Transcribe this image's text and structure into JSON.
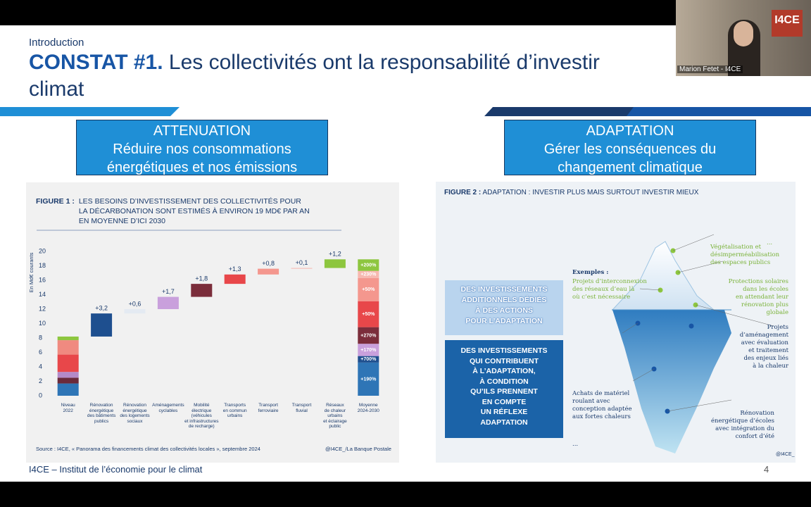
{
  "header": {
    "section": "Introduction",
    "title_bold": "CONSTAT #1.",
    "title_rest": "Les collectivités ont la responsabilité d’investir\nclimat"
  },
  "video": {
    "participant": "Marion Fetet - I4CE",
    "logo": "I4CE"
  },
  "attenuation": {
    "heading": "ATTENUATION",
    "text": "Réduire nos consommations\nénergétiques et nos émissions"
  },
  "adaptation": {
    "heading": "ADAPTATION",
    "text": "Gérer les conséquences du\nchangement climatique"
  },
  "chart_data": {
    "type": "waterfall",
    "label": "FIGURE 1 :",
    "title": "LES BESOINS D’INVESTISSEMENT DES COLLECTIVITÉS POUR\nLA DÉCARBONATION SONT ESTIMÉS À ENVIRON 19 MD€ PAR AN\nEN MOYENNE D’ICI 2030",
    "ylabel": "En Md€ courants",
    "categories": [
      "Niveau\n2022",
      "Rénovation\nénergétique\ndes bâtiments\npublics",
      "Rénovation\nénergétique\ndes logements\nsociaux",
      "Aménagements\ncyclables",
      "Mobilité\nélectrique\n(véhicules\net infrastructures\nde recharge)",
      "Transports\nen commun\nurbains",
      "Transport\nferroviaire",
      "Transport\nfluvial",
      "Réseaux\nde chaleur\nurbains\net éclairage\npublic",
      "Moyenne\n2024-2030"
    ],
    "first_bar": {
      "values": [
        1.7,
        0.8,
        0.8,
        2.4,
        2.0,
        0.5
      ],
      "colors": [
        "#2e75b6",
        "#6b2a3a",
        "#b48ac8",
        "#e8474a",
        "#f08a80",
        "#8dc63f"
      ]
    },
    "steps": {
      "values": [
        3.2,
        0.6,
        1.7,
        1.8,
        1.3,
        0.8,
        0.1,
        1.2
      ],
      "value_labels": [
        "+3,2",
        "+0,6",
        "+1,7",
        "+1,8",
        "+1,3",
        "+0,8",
        "+0,1",
        "+1,2"
      ],
      "colors": [
        "#1e4f8f",
        "#e4eaf2",
        "#c9a0dc",
        "#7b2d3b",
        "#e8474a",
        "#f4978e",
        "#f7b8b0",
        "#8dc63f"
      ]
    },
    "last_bar": {
      "values": [
        4.6,
        0.9,
        1.7,
        2.3,
        3.6,
        3.2,
        1.0,
        1.6
      ],
      "colors": [
        "#2e75b6",
        "#1e4f8f",
        "#c9a0dc",
        "#7b2d3b",
        "#e8474a",
        "#f4978e",
        "#f7b8b0",
        "#8dc63f"
      ]
    },
    "growth": {
      "values": [
        190,
        700,
        170,
        270,
        50,
        50,
        230,
        200
      ],
      "value_labels": [
        "+190%",
        "+700%",
        "+170%",
        "+270%",
        "+50%",
        "+50%",
        "+230%",
        "+200%"
      ]
    },
    "ylim": [
      0,
      20
    ],
    "yticks": [
      0,
      2,
      4,
      6,
      8,
      10,
      12,
      14,
      16,
      18,
      20
    ],
    "source": "Source : I4CE, « Panorama des financements climat des collectivités locales », septembre 2024",
    "credit": "@I4CE_/La Banque Postale"
  },
  "figure2": {
    "label": "FIGURE 2 :",
    "title": "ADAPTATION : INVESTIR PLUS MAIS SURTOUT INVESTIR MIEUX",
    "box_top": "DES INVESTISSEMENTS\nADDITIONNELS DÉDIÉS\nÀ DES ACTIONS\nPOUR L’ADAPTATION",
    "box_bottom": "DES INVESTISSEMENTS\nQUI CONTRIBUENT\nÀ L’ADAPTATION,\nÀ CONDITION\nQU’ILS PRENNENT\nEN COMPTE\nUN RÉFLEXE\nADAPTATION",
    "examples": "Exemples :",
    "annotations": [
      "Projets d’interconnexion\ndes réseaux d’eau là\noù c’est nécessaire",
      "Végétalisation et\ndésimperméabilisation\ndes espaces publics",
      "Protections solaires\ndans les écoles\nen attendant leur\nrénovation plus\nglobale",
      "Projets\nd’aménagement\navec évaluation\net traitement\ndes enjeux liés\nà la chaleur",
      "Achats de matériel\nroulant avec\nconception adaptée\naux fortes chaleurs",
      "Rénovation\nénergétique d’écoles\navec intégration du\nconfort d’été",
      "...",
      "..."
    ],
    "credit": "@I4CE_"
  },
  "footer": {
    "text": "I4CE – Institut de l’économie pour le climat",
    "page": "4"
  }
}
